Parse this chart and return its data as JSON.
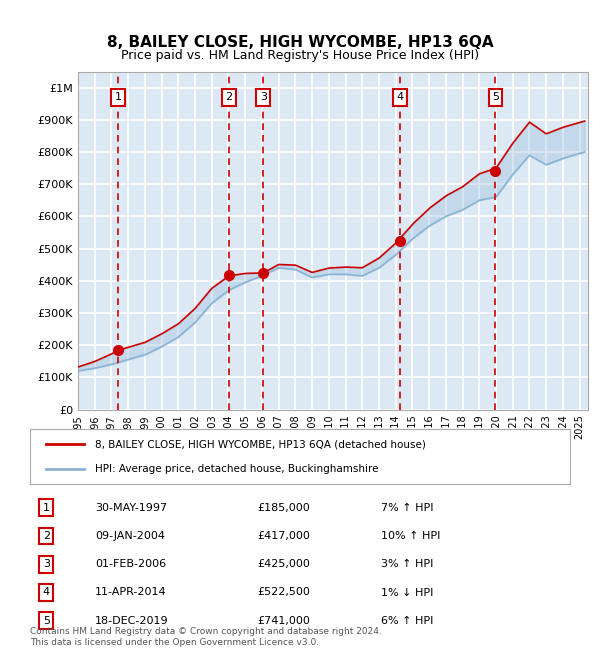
{
  "title": "8, BAILEY CLOSE, HIGH WYCOMBE, HP13 6QA",
  "subtitle": "Price paid vs. HM Land Registry's House Price Index (HPI)",
  "ylabel_ticks": [
    "£0",
    "£100K",
    "£200K",
    "£300K",
    "£400K",
    "£500K",
    "£600K",
    "£700K",
    "£800K",
    "£900K",
    "£1M"
  ],
  "ytick_values": [
    0,
    100000,
    200000,
    300000,
    400000,
    500000,
    600000,
    700000,
    800000,
    900000,
    1000000
  ],
  "ylim": [
    0,
    1050000
  ],
  "xlim_start": 1995.0,
  "xlim_end": 2025.5,
  "background_color": "#dce9f5",
  "plot_bg_color": "#dce9f5",
  "grid_color": "#ffffff",
  "sale_points": [
    {
      "year": 1997.41,
      "price": 185000,
      "label": "1"
    },
    {
      "year": 2004.03,
      "price": 417000,
      "label": "2"
    },
    {
      "year": 2006.08,
      "price": 425000,
      "label": "3"
    },
    {
      "year": 2014.28,
      "price": 522500,
      "label": "4"
    },
    {
      "year": 2019.96,
      "price": 741000,
      "label": "5"
    }
  ],
  "legend_line1": "8, BAILEY CLOSE, HIGH WYCOMBE, HP13 6QA (detached house)",
  "legend_line2": "HPI: Average price, detached house, Buckinghamshire",
  "table_rows": [
    [
      "1",
      "30-MAY-1997",
      "£185,000",
      "7% ↑ HPI"
    ],
    [
      "2",
      "09-JAN-2004",
      "£417,000",
      "10% ↑ HPI"
    ],
    [
      "3",
      "01-FEB-2006",
      "£425,000",
      "3% ↑ HPI"
    ],
    [
      "4",
      "11-APR-2014",
      "£522,500",
      "1% ↓ HPI"
    ],
    [
      "5",
      "18-DEC-2019",
      "£741,000",
      "6% ↑ HPI"
    ]
  ],
  "footnote": "Contains HM Land Registry data © Crown copyright and database right 2024.\nThis data is licensed under the Open Government Licence v3.0.",
  "line_color_property": "#cc0000",
  "line_color_hpi": "#8ab4d4",
  "sale_dot_color": "#cc0000",
  "dashed_line_color": "#cc0000",
  "box_color": "#cc0000"
}
